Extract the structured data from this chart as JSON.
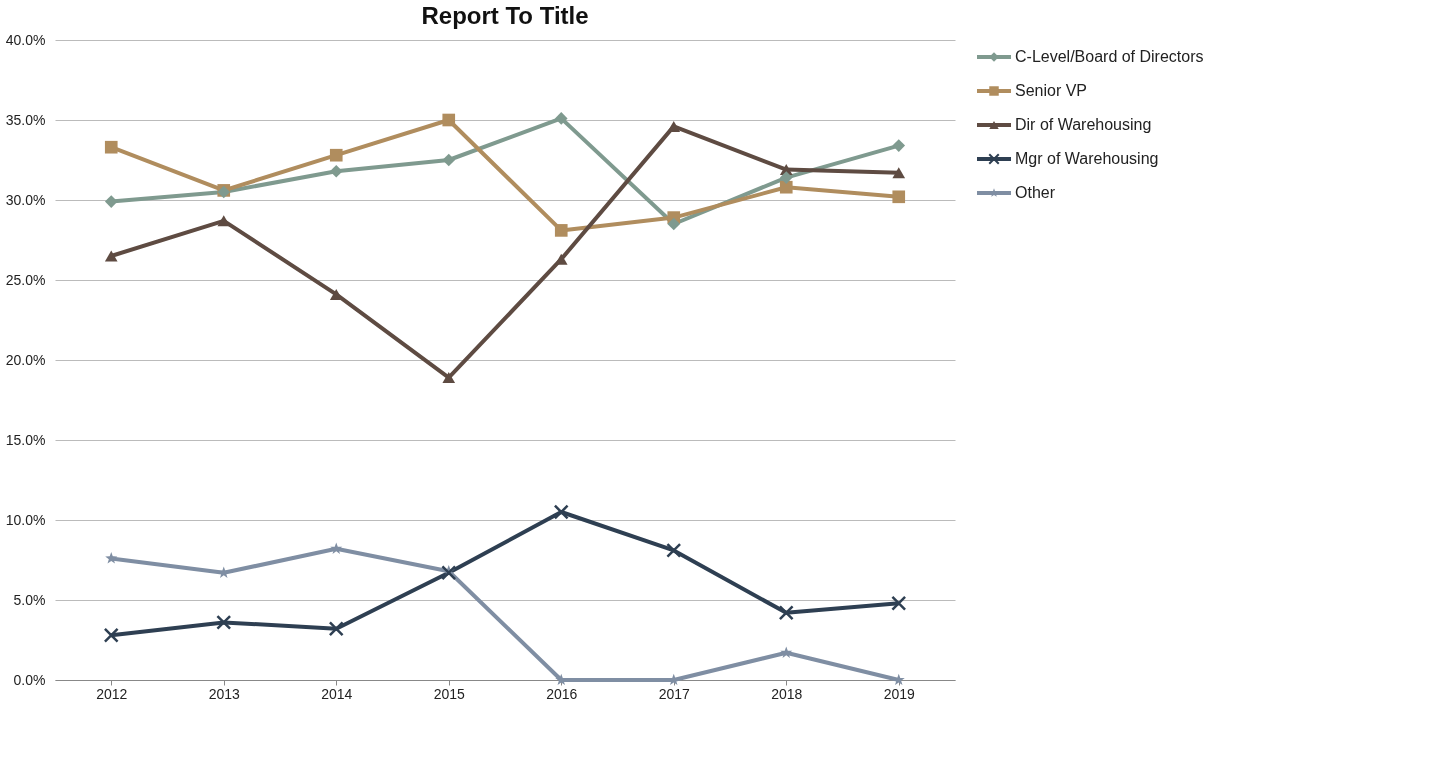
{
  "chart_data": {
    "type": "line",
    "title": "Report To Title",
    "categories": [
      "2012",
      "2013",
      "2014",
      "2015",
      "2016",
      "2017",
      "2018",
      "2019"
    ],
    "series": [
      {
        "name": "C-Level/Board of Directors",
        "color": "#7f9a8f",
        "marker": "diamond",
        "values": [
          29.9,
          30.5,
          31.8,
          32.5,
          35.1,
          28.5,
          31.4,
          33.4
        ]
      },
      {
        "name": "Senior VP",
        "color": "#b08d5e",
        "marker": "square",
        "values": [
          33.3,
          30.6,
          32.8,
          35.0,
          28.1,
          28.9,
          30.8,
          30.2
        ]
      },
      {
        "name": "Dir of Warehousing",
        "color": "#5e4b42",
        "marker": "triangle",
        "values": [
          26.5,
          28.7,
          24.1,
          18.9,
          26.3,
          34.6,
          31.9,
          31.7
        ]
      },
      {
        "name": "Mgr of Warehousing",
        "color": "#2e3f52",
        "marker": "cross",
        "values": [
          2.8,
          3.6,
          3.2,
          6.7,
          10.5,
          8.1,
          4.2,
          4.8
        ]
      },
      {
        "name": "Other",
        "color": "#7f8ea3",
        "marker": "star",
        "values": [
          7.6,
          6.7,
          8.2,
          6.8,
          0.0,
          0.0,
          1.7,
          0.0
        ]
      }
    ],
    "ylim": [
      0,
      40
    ],
    "yticks": [
      {
        "value": 0,
        "label": "0.0%"
      },
      {
        "value": 5,
        "label": "5.0%"
      },
      {
        "value": 10,
        "label": "10.0%"
      },
      {
        "value": 15,
        "label": "15.0%"
      },
      {
        "value": 20,
        "label": "20.0%"
      },
      {
        "value": 25,
        "label": "25.0%"
      },
      {
        "value": 30,
        "label": "30.0%"
      },
      {
        "value": 35,
        "label": "35.0%"
      },
      {
        "value": 40,
        "label": "40.0%"
      }
    ],
    "grid": "y",
    "legend": "right",
    "line_style": "solid"
  }
}
